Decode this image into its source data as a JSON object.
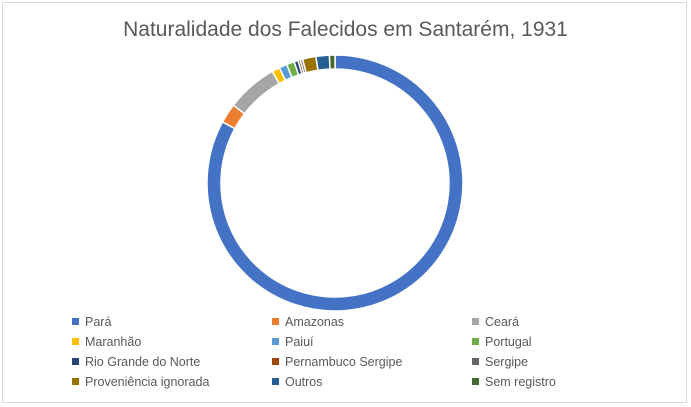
{
  "chart_data": {
    "type": "pie",
    "donut": true,
    "title": "Naturalidade dos Falecidos em Santarém, 1931",
    "legend_position": "bottom",
    "slices": [
      {
        "label": "Pará",
        "value": 83.5,
        "color": "#4472C4"
      },
      {
        "label": "Amazonas",
        "value": 2.5,
        "color": "#ED7D31"
      },
      {
        "label": "Ceará",
        "value": 6.5,
        "color": "#A5A5A5"
      },
      {
        "label": "Maranhão",
        "value": 1.0,
        "color": "#FFC000"
      },
      {
        "label": "Paiuí",
        "value": 1.0,
        "color": "#5B9BD5"
      },
      {
        "label": "Portugal",
        "value": 1.0,
        "color": "#70AD47"
      },
      {
        "label": "Rio Grande do Norte",
        "value": 0.5,
        "color": "#264478"
      },
      {
        "label": "Pernambuco Sergipe",
        "value": 0.3,
        "color": "#9E480E"
      },
      {
        "label": "Sergipe",
        "value": 0.3,
        "color": "#636363"
      },
      {
        "label": "Proveniência ignorada",
        "value": 1.7,
        "color": "#997300"
      },
      {
        "label": "Outros",
        "value": 1.7,
        "color": "#255E91"
      },
      {
        "label": "Sem registro",
        "value": 0.7,
        "color": "#43682B"
      }
    ]
  }
}
